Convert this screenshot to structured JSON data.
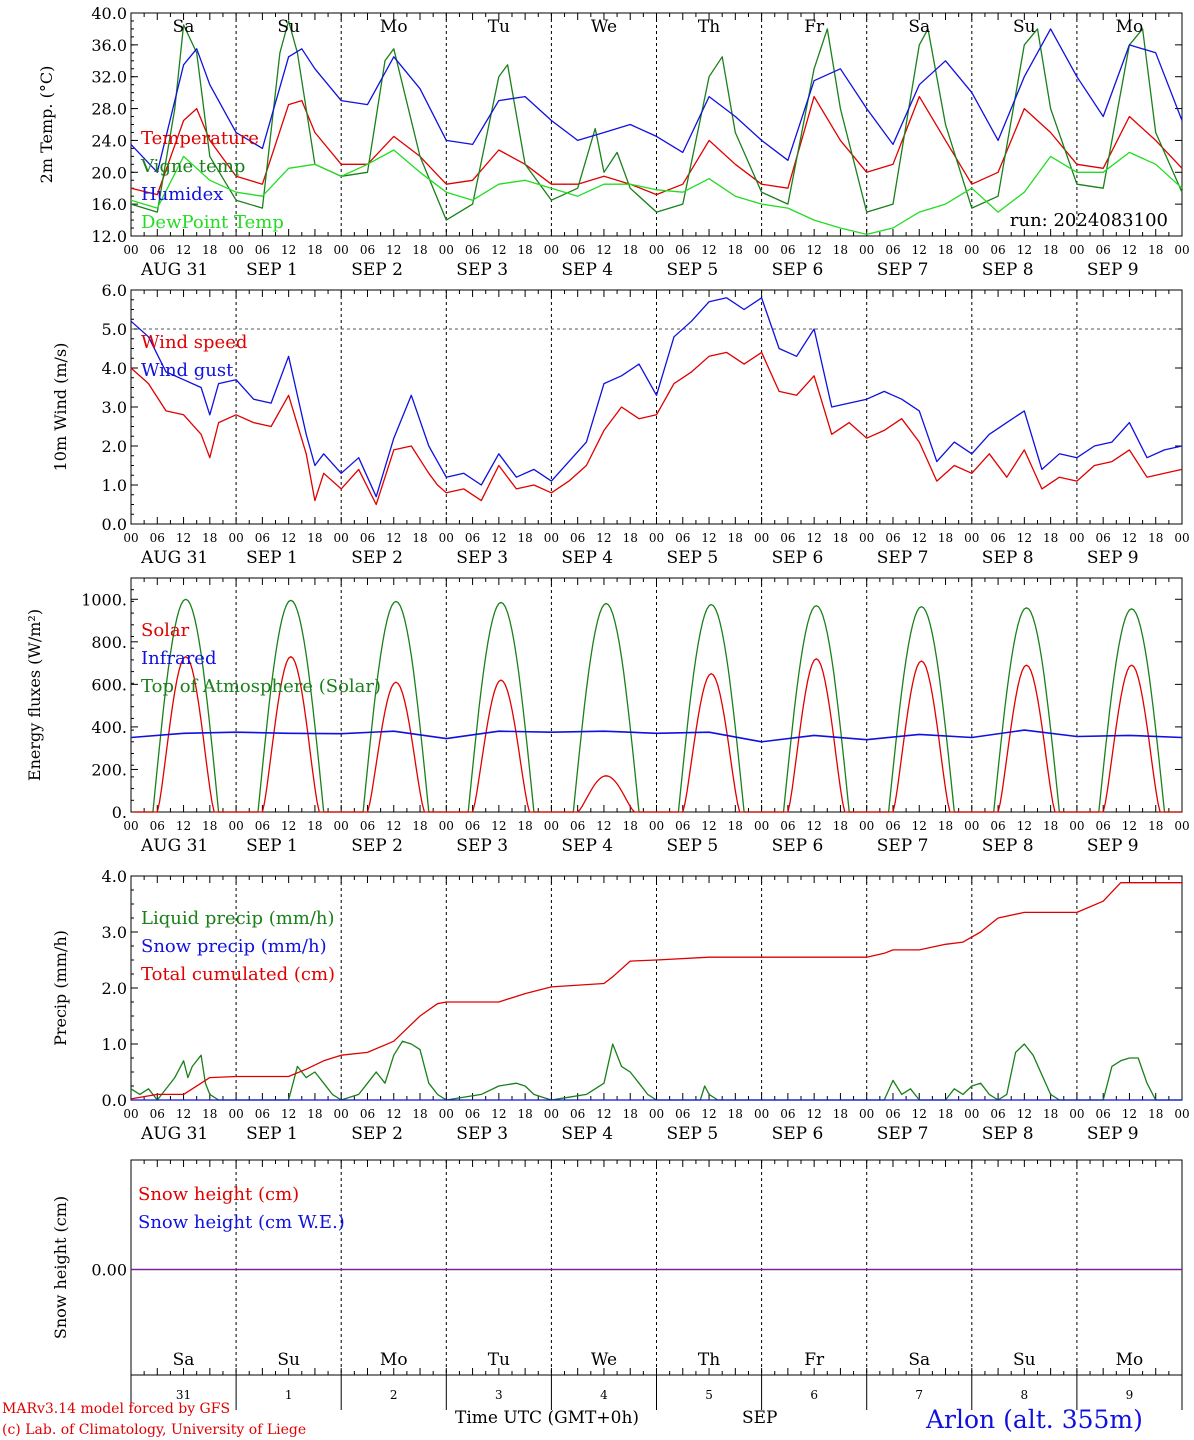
{
  "days": [
    "AUG 31",
    "SEP  1",
    "SEP  2",
    "SEP  3",
    "SEP  4",
    "SEP  5",
    "SEP  6",
    "SEP  7",
    "SEP  8",
    "SEP  9"
  ],
  "weekdays": [
    "Sa",
    "Su",
    "Mo",
    "Tu",
    "We",
    "Th",
    "Fr",
    "Sa",
    "Su",
    "Mo"
  ],
  "weekday_colors": [
    "#e00000",
    "#e00000",
    "#000000",
    "#000000",
    "#000000",
    "#000000",
    "#000000",
    "#e00000",
    "#e00000",
    "#000000"
  ],
  "hour_ticks": [
    "00",
    "06",
    "12",
    "18"
  ],
  "day_numbers": [
    "31",
    "1",
    "2",
    "3",
    "4",
    "5",
    "6",
    "7",
    "8",
    "9"
  ],
  "footer": {
    "model": "MARv3.14 model forced by GFS",
    "credit": "(c) Lab. of Climatology, University of Liege",
    "time_label": "Time UTC (GMT+0h)",
    "month": "SEP",
    "station": "Arlon (alt. 355m)"
  },
  "colors": {
    "red": "#e00000",
    "green": "#1a801a",
    "blue": "#1010e0",
    "lightgreen": "#22dd22",
    "purple": "#8020a0"
  },
  "chart_data": [
    {
      "id": "temp",
      "type": "line",
      "ylabel": "2m Temp. (°C)",
      "ylim": [
        12,
        40
      ],
      "yticks": [
        "12.0",
        "16.0",
        "20.0",
        "24.0",
        "28.0",
        "32.0",
        "36.0",
        "40.0"
      ],
      "annotation": "run: 2024083100",
      "x_hours": [
        0,
        240
      ],
      "series": [
        {
          "name": "Temperature",
          "color": "#e00000",
          "x": [
            0,
            6,
            12,
            15,
            18,
            24,
            30,
            36,
            39,
            42,
            48,
            54,
            60,
            66,
            72,
            78,
            84,
            90,
            96,
            102,
            108,
            114,
            120,
            126,
            132,
            138,
            144,
            150,
            156,
            162,
            168,
            174,
            180,
            186,
            192,
            198,
            204,
            210,
            216,
            222,
            228,
            234,
            240
          ],
          "values": [
            18,
            17.2,
            26.5,
            28,
            24,
            19.5,
            18.5,
            28.5,
            29,
            25,
            21,
            21,
            24.5,
            22,
            18.5,
            19,
            22.8,
            21,
            18.5,
            18.5,
            19.5,
            18.5,
            17.2,
            18.5,
            24,
            21,
            18.5,
            18,
            29.5,
            24,
            20,
            21,
            29.5,
            24,
            18.5,
            20,
            28,
            25,
            21,
            20.5,
            27,
            24,
            20.5
          ]
        },
        {
          "name": "Vigne temp",
          "color": "#1a801a",
          "x": [
            0,
            6,
            10,
            12,
            15,
            18,
            24,
            30,
            34,
            36,
            38,
            42,
            48,
            54,
            58,
            60,
            66,
            72,
            78,
            84,
            86,
            90,
            96,
            102,
            106,
            108,
            111,
            114,
            120,
            126,
            132,
            135,
            138,
            144,
            150,
            156,
            159,
            162,
            168,
            174,
            180,
            182,
            186,
            192,
            198,
            204,
            207,
            210,
            216,
            222,
            228,
            231,
            234,
            240
          ],
          "values": [
            16,
            15,
            28,
            38.5,
            35,
            22,
            16.5,
            15.5,
            35,
            39,
            35,
            21,
            19.5,
            20,
            34,
            35.5,
            22,
            14,
            16,
            32,
            33.5,
            21,
            16.5,
            18,
            25.5,
            20,
            22.5,
            18,
            15,
            16,
            32,
            34.5,
            25,
            17.5,
            16,
            33,
            38,
            28,
            15,
            16,
            36,
            38,
            26,
            15.5,
            17,
            36,
            38,
            28,
            18.5,
            18,
            36,
            38,
            25,
            17.5
          ]
        },
        {
          "name": "Humidex",
          "color": "#1010e0",
          "x": [
            0,
            6,
            12,
            15,
            18,
            24,
            30,
            36,
            39,
            42,
            48,
            54,
            60,
            66,
            72,
            78,
            84,
            90,
            96,
            102,
            108,
            114,
            120,
            126,
            132,
            138,
            144,
            150,
            156,
            162,
            168,
            174,
            180,
            186,
            192,
            198,
            204,
            210,
            216,
            222,
            228,
            234,
            240
          ],
          "values": [
            23.5,
            20,
            33.5,
            35.5,
            31,
            25,
            23,
            34.5,
            35.5,
            33,
            29,
            28.5,
            34.5,
            30.5,
            24,
            23.5,
            29,
            29.5,
            26.5,
            24,
            25,
            26,
            24.5,
            22.5,
            29.5,
            27,
            24,
            21.5,
            31.5,
            33,
            28,
            23.5,
            31,
            34,
            30,
            24,
            32,
            38,
            32,
            27,
            36,
            35,
            26.5
          ]
        },
        {
          "name": "DewPoint Temp",
          "color": "#22dd22",
          "x": [
            0,
            6,
            12,
            18,
            24,
            30,
            36,
            42,
            48,
            54,
            60,
            66,
            72,
            78,
            84,
            90,
            96,
            102,
            108,
            114,
            120,
            126,
            132,
            138,
            144,
            150,
            156,
            162,
            168,
            174,
            180,
            186,
            192,
            198,
            204,
            210,
            216,
            222,
            228,
            234,
            240
          ],
          "values": [
            16.5,
            15.5,
            22,
            19,
            17.5,
            17,
            20.5,
            21,
            19.5,
            21,
            22.8,
            20,
            17.5,
            16.5,
            18.5,
            19,
            18,
            17,
            18.5,
            18.5,
            17.8,
            17.5,
            19.2,
            17,
            16,
            15.5,
            14,
            13,
            12.2,
            13,
            15,
            16,
            18,
            15,
            17.5,
            22,
            20,
            20,
            22.5,
            21,
            18
          ]
        }
      ]
    },
    {
      "id": "wind",
      "type": "line",
      "ylabel": "10m Wind (m/s)",
      "ylim": [
        0,
        6
      ],
      "yticks": [
        "0.0",
        "1.0",
        "2.0",
        "3.0",
        "4.0",
        "5.0",
        "6.0"
      ],
      "ref_line": 5,
      "series": [
        {
          "name": "Wind speed",
          "color": "#e00000",
          "x": [
            0,
            4,
            8,
            12,
            16,
            18,
            20,
            24,
            28,
            32,
            36,
            40,
            42,
            44,
            48,
            52,
            56,
            60,
            64,
            68,
            70,
            72,
            76,
            80,
            84,
            88,
            92,
            96,
            100,
            104,
            108,
            112,
            116,
            120,
            124,
            128,
            132,
            136,
            140,
            144,
            148,
            152,
            156,
            160,
            164,
            168,
            172,
            176,
            180,
            184,
            188,
            192,
            196,
            200,
            204,
            208,
            212,
            216,
            220,
            224,
            228,
            232,
            236,
            240
          ],
          "values": [
            4,
            3.6,
            2.9,
            2.8,
            2.3,
            1.7,
            2.6,
            2.8,
            2.6,
            2.5,
            3.3,
            1.8,
            0.6,
            1.3,
            0.9,
            1.4,
            0.5,
            1.9,
            2.0,
            1.3,
            1.0,
            0.8,
            0.9,
            0.6,
            1.5,
            0.9,
            1.0,
            0.8,
            1.1,
            1.5,
            2.4,
            3.0,
            2.7,
            2.8,
            3.6,
            3.9,
            4.3,
            4.4,
            4.1,
            4.4,
            3.4,
            3.3,
            3.8,
            2.3,
            2.6,
            2.2,
            2.4,
            2.7,
            2.1,
            1.1,
            1.5,
            1.3,
            1.8,
            1.2,
            1.9,
            0.9,
            1.2,
            1.1,
            1.5,
            1.6,
            1.9,
            1.2,
            1.3,
            1.4
          ]
        },
        {
          "name": "Wind gust",
          "color": "#1010e0",
          "x": [
            0,
            4,
            8,
            12,
            16,
            18,
            20,
            24,
            28,
            32,
            36,
            40,
            42,
            44,
            48,
            52,
            56,
            60,
            64,
            68,
            70,
            72,
            76,
            80,
            84,
            88,
            92,
            96,
            100,
            104,
            108,
            112,
            116,
            120,
            124,
            128,
            132,
            136,
            140,
            144,
            148,
            152,
            156,
            160,
            164,
            168,
            172,
            176,
            180,
            184,
            188,
            192,
            196,
            200,
            204,
            208,
            212,
            216,
            220,
            224,
            228,
            232,
            236,
            240
          ],
          "values": [
            5.2,
            4.8,
            3.9,
            3.7,
            3.5,
            2.8,
            3.6,
            3.7,
            3.2,
            3.1,
            4.3,
            2.3,
            1.5,
            1.8,
            1.3,
            1.7,
            0.7,
            2.2,
            3.3,
            2.0,
            1.6,
            1.2,
            1.3,
            1.0,
            1.8,
            1.2,
            1.4,
            1.1,
            1.6,
            2.1,
            3.6,
            3.8,
            4.1,
            3.3,
            4.8,
            5.2,
            5.7,
            5.8,
            5.5,
            5.8,
            4.5,
            4.3,
            5.0,
            3.0,
            3.1,
            3.2,
            3.4,
            3.2,
            2.9,
            1.6,
            2.1,
            1.8,
            2.3,
            2.6,
            2.9,
            1.4,
            1.8,
            1.7,
            2.0,
            2.1,
            2.6,
            1.7,
            1.9,
            2.0
          ]
        }
      ]
    },
    {
      "id": "energy",
      "type": "line",
      "ylabel": "Energy fluxes (W/m²)",
      "ylim": [
        0,
        1100
      ],
      "yticks": [
        "0.",
        "200.",
        "400.",
        "600.",
        "800.",
        "1000."
      ],
      "solar_peaks": [
        730,
        730,
        610,
        620,
        170,
        650,
        720,
        710,
        690,
        690
      ],
      "toa_peaks": [
        1000,
        995,
        990,
        985,
        980,
        975,
        970,
        965,
        960,
        955
      ],
      "series": [
        {
          "name": "Solar",
          "color": "#e00000"
        },
        {
          "name": "Infrared",
          "color": "#1010e0",
          "x": [
            0,
            12,
            24,
            36,
            48,
            60,
            72,
            84,
            96,
            108,
            120,
            132,
            144,
            156,
            168,
            180,
            192,
            204,
            216,
            228,
            240
          ],
          "values": [
            350,
            370,
            375,
            370,
            368,
            380,
            345,
            380,
            375,
            380,
            370,
            375,
            330,
            360,
            340,
            365,
            350,
            385,
            355,
            360,
            350
          ]
        },
        {
          "name": "Top of Atmosphere (Solar)",
          "color": "#1a801a"
        }
      ]
    },
    {
      "id": "precip",
      "type": "line",
      "ylabel": "Precip (mm/h)",
      "ylim": [
        0,
        4
      ],
      "yticks": [
        "0.0",
        "1.0",
        "2.0",
        "3.0",
        "4.0"
      ],
      "series": [
        {
          "name": "Liquid precip (mm/h)",
          "color": "#1a801a",
          "x": [
            0,
            2,
            4,
            6,
            10,
            12,
            13,
            14,
            16,
            17,
            18,
            20,
            36,
            38,
            40,
            42,
            44,
            46,
            48,
            52,
            54,
            56,
            58,
            60,
            62,
            64,
            66,
            68,
            70,
            72,
            80,
            84,
            88,
            90,
            92,
            94,
            96,
            100,
            104,
            108,
            110,
            112,
            114,
            116,
            118,
            120,
            130,
            131,
            132,
            134,
            172,
            174,
            176,
            178,
            180,
            186,
            188,
            190,
            192,
            194,
            196,
            198,
            200,
            202,
            204,
            206,
            210,
            212,
            222,
            224,
            226,
            228,
            230,
            232,
            234,
            240
          ],
          "values": [
            0.2,
            0.1,
            0.2,
            0,
            0.4,
            0.7,
            0.4,
            0.6,
            0.8,
            0.3,
            0.1,
            0,
            0,
            0.6,
            0.4,
            0.5,
            0.3,
            0.1,
            0,
            0.1,
            0.3,
            0.5,
            0.3,
            0.8,
            1.05,
            1.0,
            0.9,
            0.3,
            0.1,
            0,
            0.1,
            0.25,
            0.3,
            0.25,
            0.1,
            0.05,
            0,
            0.05,
            0.1,
            0.3,
            1.0,
            0.6,
            0.5,
            0.3,
            0.1,
            0,
            0,
            0.25,
            0.1,
            0,
            0,
            0.35,
            0.1,
            0.2,
            0,
            0,
            0.2,
            0.1,
            0.25,
            0.3,
            0.1,
            0,
            0.1,
            0.85,
            1.0,
            0.8,
            0.1,
            0,
            0,
            0.6,
            0.7,
            0.75,
            0.75,
            0.3,
            0,
            0
          ]
        },
        {
          "name": "Snow precip (mm/h)",
          "color": "#1010e0",
          "x": [
            0,
            240
          ],
          "values": [
            0,
            0
          ]
        },
        {
          "name": "Total cumulated (cm)",
          "color": "#e00000",
          "x": [
            0,
            6,
            12,
            16,
            18,
            24,
            36,
            40,
            44,
            48,
            54,
            60,
            62,
            66,
            70,
            72,
            84,
            90,
            96,
            108,
            110,
            114,
            120,
            132,
            144,
            168,
            172,
            174,
            180,
            186,
            190,
            194,
            198,
            204,
            216,
            222,
            226,
            240
          ],
          "values": [
            0.02,
            0.1,
            0.1,
            0.3,
            0.4,
            0.42,
            0.42,
            0.55,
            0.7,
            0.8,
            0.85,
            1.05,
            1.2,
            1.5,
            1.72,
            1.75,
            1.75,
            1.9,
            2.02,
            2.08,
            2.2,
            2.48,
            2.5,
            2.55,
            2.55,
            2.55,
            2.62,
            2.68,
            2.68,
            2.78,
            2.82,
            3.0,
            3.25,
            3.35,
            3.35,
            3.55,
            3.88,
            3.88
          ]
        }
      ]
    },
    {
      "id": "snow",
      "type": "line",
      "ylabel": "Snow height (cm)",
      "yticks": [
        "0.00"
      ],
      "series": [
        {
          "name": "Snow height (cm)",
          "color": "#e00000",
          "x": [
            0,
            240
          ],
          "values": [
            0,
            0
          ]
        },
        {
          "name": "Snow height (cm W.E.)",
          "color": "#1010e0",
          "x": [
            0,
            240
          ],
          "values": [
            0,
            0
          ]
        }
      ]
    }
  ]
}
